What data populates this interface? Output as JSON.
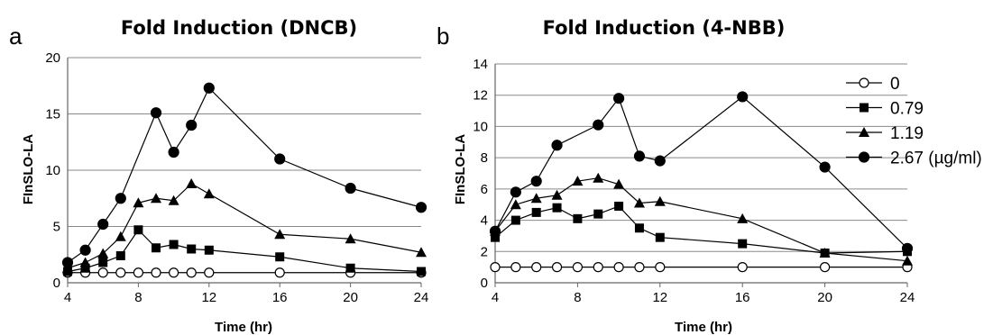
{
  "chart_data": [
    {
      "type": "line",
      "panel_letter": "a",
      "title": "Fold Induction (DNCB)",
      "xlabel": "Time (hr)",
      "ylabel": "FInSLO-LA",
      "xlim": [
        4,
        24
      ],
      "ylim": [
        0,
        20
      ],
      "xticks": [
        "4",
        "8",
        "12",
        "16",
        "20",
        "24"
      ],
      "yticks": [
        "0",
        "5",
        "10",
        "15",
        "20"
      ],
      "grid": true,
      "legend": "none",
      "series": [
        {
          "marker": "circle-open",
          "points": [
            [
              4,
              0.9
            ],
            [
              5,
              0.9
            ],
            [
              6,
              0.9
            ],
            [
              7,
              0.9
            ],
            [
              8,
              0.9
            ],
            [
              9,
              0.9
            ],
            [
              10,
              0.9
            ],
            [
              11,
              0.9
            ],
            [
              12,
              0.9
            ],
            [
              16,
              0.9
            ],
            [
              20,
              0.9
            ],
            [
              24,
              0.9
            ]
          ]
        },
        {
          "marker": "square",
          "points": [
            [
              4,
              1.0
            ],
            [
              5,
              1.3
            ],
            [
              6,
              1.8
            ],
            [
              7,
              2.4
            ],
            [
              8,
              4.7
            ],
            [
              9,
              3.1
            ],
            [
              10,
              3.4
            ],
            [
              11,
              3.0
            ],
            [
              12,
              2.9
            ],
            [
              16,
              2.3
            ],
            [
              20,
              1.3
            ],
            [
              24,
              1.0
            ]
          ]
        },
        {
          "marker": "triangle",
          "points": [
            [
              4,
              1.3
            ],
            [
              5,
              1.8
            ],
            [
              6,
              2.6
            ],
            [
              7,
              4.1
            ],
            [
              8,
              7.1
            ],
            [
              9,
              7.5
            ],
            [
              10,
              7.3
            ],
            [
              11,
              8.8
            ],
            [
              12,
              7.9
            ],
            [
              16,
              4.3
            ],
            [
              20,
              3.9
            ],
            [
              24,
              2.7
            ]
          ]
        },
        {
          "marker": "circle",
          "points": [
            [
              4,
              1.8
            ],
            [
              5,
              2.9
            ],
            [
              6,
              5.2
            ],
            [
              7,
              7.5
            ],
            [
              9,
              15.1
            ],
            [
              10,
              11.6
            ],
            [
              11,
              14.0
            ],
            [
              12,
              17.3
            ],
            [
              16,
              11.0
            ],
            [
              20,
              8.4
            ],
            [
              24,
              6.7
            ]
          ]
        }
      ]
    },
    {
      "type": "line",
      "panel_letter": "b",
      "title": "Fold Induction (4-NBB)",
      "xlabel": "Time (hr)",
      "ylabel": "FInSLO-LA",
      "xlim": [
        4,
        24
      ],
      "ylim": [
        0,
        14
      ],
      "xticks": [
        "4",
        "8",
        "12",
        "16",
        "20",
        "24"
      ],
      "yticks": [
        "0",
        "2",
        "4",
        "6",
        "8",
        "10",
        "12",
        "14"
      ],
      "grid": true,
      "legend": "right",
      "legend_entries": [
        "0",
        "0.79",
        "1.19",
        "2.67 (µg/ml)"
      ],
      "series": [
        {
          "name": "0",
          "marker": "circle-open",
          "points": [
            [
              4,
              1.0
            ],
            [
              5,
              1.0
            ],
            [
              6,
              1.0
            ],
            [
              7,
              1.0
            ],
            [
              8,
              1.0
            ],
            [
              9,
              1.0
            ],
            [
              10,
              1.0
            ],
            [
              11,
              1.0
            ],
            [
              12,
              1.0
            ],
            [
              16,
              1.0
            ],
            [
              20,
              1.0
            ],
            [
              24,
              1.0
            ]
          ]
        },
        {
          "name": "0.79",
          "marker": "square",
          "points": [
            [
              4,
              2.9
            ],
            [
              5,
              4.0
            ],
            [
              6,
              4.5
            ],
            [
              7,
              4.8
            ],
            [
              8,
              4.1
            ],
            [
              9,
              4.4
            ],
            [
              10,
              4.9
            ],
            [
              11,
              3.5
            ],
            [
              12,
              2.9
            ],
            [
              16,
              2.5
            ],
            [
              20,
              1.9
            ],
            [
              24,
              2.0
            ]
          ]
        },
        {
          "name": "1.19",
          "marker": "triangle",
          "points": [
            [
              4,
              3.3
            ],
            [
              5,
              5.0
            ],
            [
              6,
              5.4
            ],
            [
              7,
              5.6
            ],
            [
              8,
              6.5
            ],
            [
              9,
              6.7
            ],
            [
              10,
              6.3
            ],
            [
              11,
              5.1
            ],
            [
              12,
              5.2
            ],
            [
              16,
              4.1
            ],
            [
              20,
              1.9
            ],
            [
              24,
              1.4
            ]
          ]
        },
        {
          "name": "2.67 (µg/ml)",
          "marker": "circle",
          "points": [
            [
              4,
              3.3
            ],
            [
              5,
              5.8
            ],
            [
              6,
              6.5
            ],
            [
              7,
              8.8
            ],
            [
              9,
              10.1
            ],
            [
              10,
              11.8
            ],
            [
              11,
              8.1
            ],
            [
              12,
              7.8
            ],
            [
              16,
              11.9
            ],
            [
              20,
              7.4
            ],
            [
              24,
              2.2
            ]
          ]
        }
      ]
    }
  ]
}
